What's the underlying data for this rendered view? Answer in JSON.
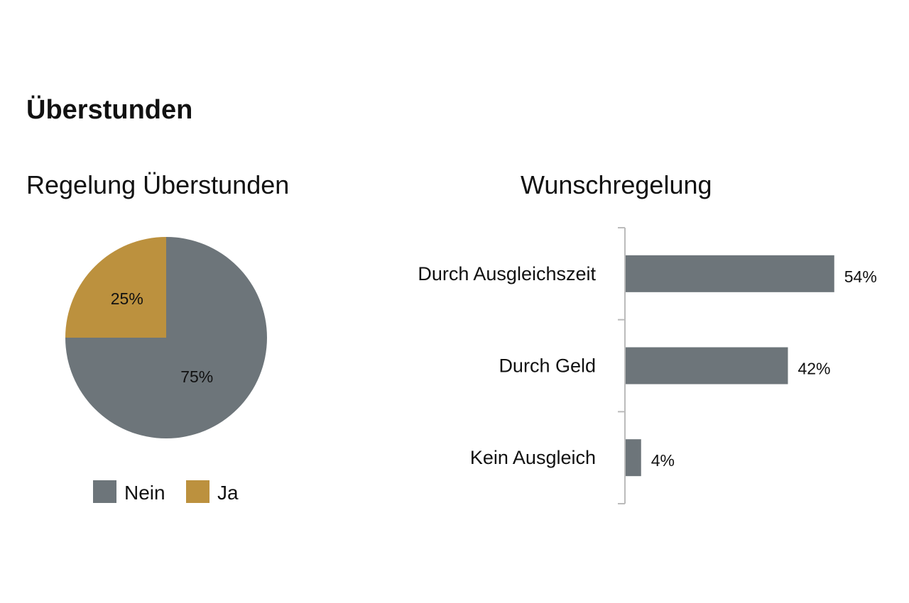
{
  "page": {
    "title": "Überstunden"
  },
  "chart_data": [
    {
      "type": "pie",
      "title": "Regelung Überstunden",
      "slices": [
        {
          "label": "Nein",
          "value": 75,
          "display": "75%",
          "color": "#6d757a"
        },
        {
          "label": "Ja",
          "value": 25,
          "display": "25%",
          "color": "#bc913e"
        }
      ],
      "legend": {
        "placement": "bottom",
        "entries": [
          "Nein",
          "Ja"
        ]
      }
    },
    {
      "type": "bar",
      "orientation": "horizontal",
      "title": "Wunschregelung",
      "categories": [
        "Durch Ausgleichszeit",
        "Durch Geld",
        "Kein Ausgleich"
      ],
      "values": [
        54,
        42,
        4
      ],
      "value_labels": [
        "54%",
        "42%",
        "4%"
      ],
      "color": "#6d757a",
      "xlim": [
        0,
        100
      ],
      "grid": false
    }
  ]
}
